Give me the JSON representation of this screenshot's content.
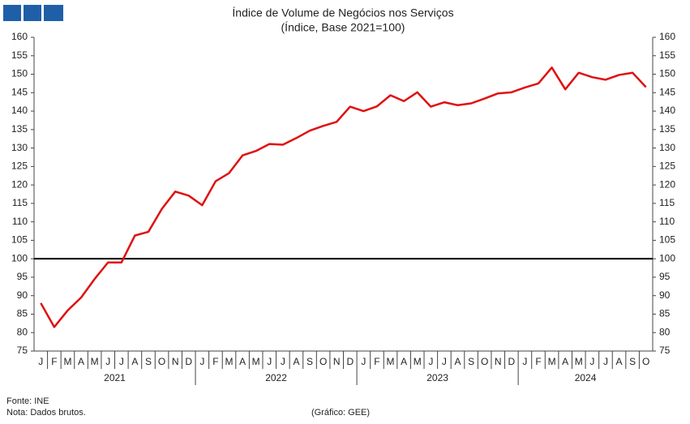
{
  "chart_data": {
    "type": "line",
    "title": "Índice de Volume de Negócios nos Serviços",
    "subtitle": "(Índice, Base 2021=100)",
    "categories": [
      "J",
      "F",
      "M",
      "A",
      "M",
      "J",
      "J",
      "A",
      "S",
      "O",
      "N",
      "D",
      "J",
      "F",
      "M",
      "A",
      "M",
      "J",
      "J",
      "A",
      "S",
      "O",
      "N",
      "D",
      "J",
      "F",
      "M",
      "A",
      "M",
      "J",
      "J",
      "A",
      "S",
      "O",
      "N",
      "D",
      "J",
      "F",
      "M",
      "A",
      "M",
      "J",
      "J",
      "A",
      "S",
      "O"
    ],
    "years": [
      "2021",
      "2022",
      "2023",
      "2024"
    ],
    "series": [
      {
        "name": "Índice",
        "color": "#e01010",
        "values": [
          88,
          81.5,
          86,
          89.5,
          94.5,
          99,
          99,
          106.3,
          107.3,
          113.5,
          118.2,
          117.1,
          114.5,
          121,
          123.2,
          128,
          129.2,
          131.1,
          130.9,
          132.7,
          134.7,
          136,
          137.1,
          141.2,
          140,
          141.3,
          144.3,
          142.7,
          145.1,
          141.2,
          142.4,
          141.6,
          142.1,
          143.4,
          144.8,
          145.1,
          146.4,
          147.5,
          151.8,
          145.9,
          150.4,
          149.2,
          148.5,
          149.8,
          150.4,
          146.5
        ]
      }
    ],
    "reference_line": 100,
    "ylim": [
      75,
      160
    ],
    "yticks": [
      75,
      80,
      85,
      90,
      95,
      100,
      105,
      110,
      115,
      120,
      125,
      130,
      135,
      140,
      145,
      150,
      155,
      160
    ],
    "y2lim": [
      75,
      160
    ],
    "y2ticks": [
      75,
      80,
      85,
      90,
      95,
      100,
      105,
      110,
      115,
      120,
      125,
      130,
      135,
      140,
      145,
      150,
      155,
      160
    ],
    "source": "Fonte: INE",
    "note": "Nota: Dados brutos.",
    "credit": "(Gráfico: GEE)"
  }
}
